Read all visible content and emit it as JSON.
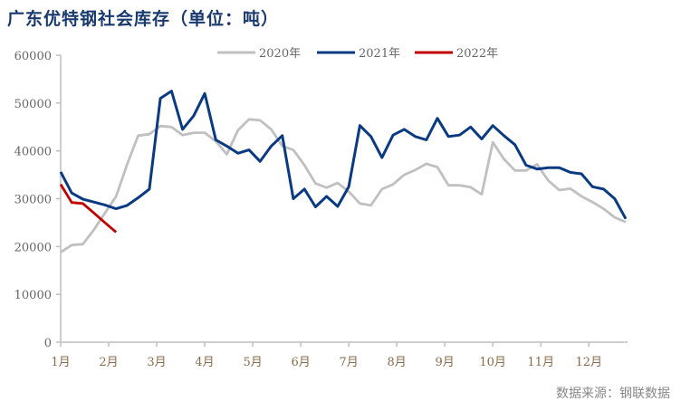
{
  "title": "广东优特钢社会库存（单位：吨）",
  "source": "数据来源：钢联数据",
  "chart_data": {
    "type": "line",
    "title": "广东优特钢社会库存（单位：吨）",
    "x_tick_labels": [
      "1月",
      "2月",
      "3月",
      "4月",
      "5月",
      "6月",
      "7月",
      "8月",
      "9月",
      "10月",
      "11月",
      "12月"
    ],
    "x_unit": "week of year (1-52)",
    "ylim": [
      0,
      60000
    ],
    "y_ticks": [
      0,
      10000,
      20000,
      30000,
      40000,
      50000,
      60000
    ],
    "grid": false,
    "legend": "top",
    "series": [
      {
        "name": "2020年",
        "color": "#c0c0c0",
        "values": [
          18800,
          20300,
          20500,
          23500,
          27000,
          30500,
          37200,
          43200,
          43500,
          45200,
          45000,
          43300,
          43800,
          43800,
          42000,
          39300,
          44300,
          46600,
          46400,
          44500,
          41000,
          40200,
          37000,
          33200,
          32300,
          33300,
          31500,
          29000,
          28600,
          32000,
          33000,
          35000,
          36000,
          37300,
          36600,
          32800,
          32800,
          32400,
          30900,
          41800,
          38300,
          35900,
          35900,
          37200,
          33800,
          31800,
          32100,
          30500,
          29300,
          27900,
          26100,
          25100
        ]
      },
      {
        "name": "2021年",
        "color": "#0a3b82",
        "values": [
          35600,
          31200,
          29900,
          29300,
          28700,
          27900,
          28600,
          30200,
          32000,
          51000,
          52500,
          44500,
          47300,
          52000,
          42300,
          41000,
          39500,
          40200,
          37800,
          41000,
          43200,
          30000,
          32000,
          28300,
          30500,
          28400,
          32500,
          45300,
          43000,
          38600,
          43300,
          44500,
          43000,
          42300,
          46800,
          43000,
          43300,
          45000,
          42500,
          45300,
          43200,
          41300,
          37000,
          36200,
          36500,
          36500,
          35500,
          35200,
          32500,
          32000,
          30000,
          25800
        ]
      },
      {
        "name": "2022年",
        "color": "#c00000",
        "values": [
          33000,
          29200,
          29000,
          27000,
          25000,
          23000
        ]
      }
    ]
  }
}
